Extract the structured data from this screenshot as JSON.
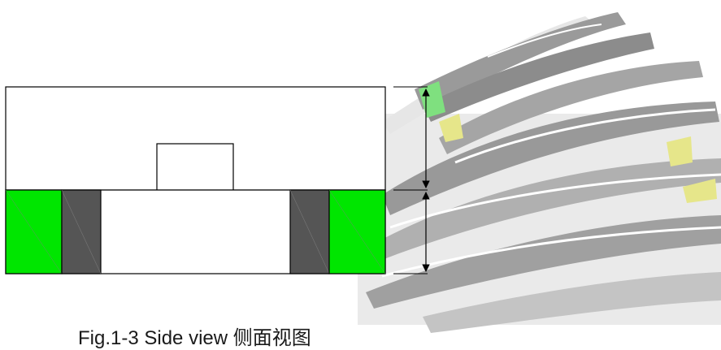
{
  "figure": {
    "caption": "Fig.1-3 Side view  侧面视图"
  },
  "colors": {
    "outline": "#000000",
    "green_block": "#00e600",
    "dark_block": "#555555",
    "streak_gray": "#8c8c8c",
    "streak_light": "#cccccc",
    "streak_yellow": "#e6e68a",
    "streak_green": "#7fe07f"
  },
  "parts": {
    "upper_body": "upper rectangular housing",
    "top_boss": "small raised rectangle",
    "base": "lower base strip",
    "green_blocks": "outer green end blocks",
    "dark_blocks": "inner dark gray blocks"
  },
  "dimensions": {
    "upper_arrow": "vertical dimension arrow for upper housing height",
    "lower_arrow": "vertical dimension arrow for base height"
  }
}
